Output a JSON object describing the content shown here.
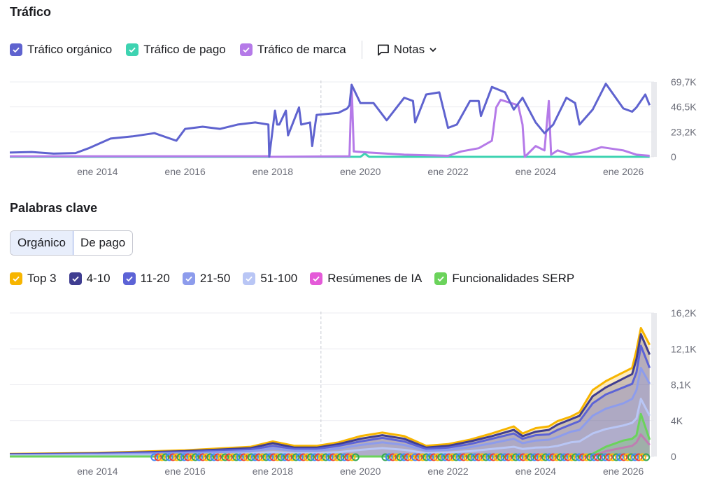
{
  "traffic": {
    "title": "Tráfico",
    "legend": [
      {
        "label": "Tráfico orgánico",
        "color": "#5f63cf"
      },
      {
        "label": "Tráfico de pago",
        "color": "#3ed3b1"
      },
      {
        "label": "Tráfico de marca",
        "color": "#b57ae8"
      }
    ],
    "notes_label": "Notas"
  },
  "keywords": {
    "title": "Palabras clave",
    "tabs": [
      {
        "label": "Orgánico",
        "active": true
      },
      {
        "label": "De pago",
        "active": false
      }
    ],
    "legend": [
      {
        "label": "Top 3",
        "color": "#f7b500"
      },
      {
        "label": "4-10",
        "color": "#3f3d91"
      },
      {
        "label": "11-20",
        "color": "#5c63d6"
      },
      {
        "label": "21-50",
        "color": "#8d9cec"
      },
      {
        "label": "51-100",
        "color": "#b9c6f5"
      },
      {
        "label": "Resúmenes de IA",
        "color": "#e45ad8"
      },
      {
        "label": "Funcionalidades SERP",
        "color": "#6bd35b"
      }
    ]
  },
  "chart_data": [
    {
      "type": "line",
      "title": "Tráfico",
      "x_ticks": [
        "ene 2014",
        "ene 2016",
        "ene 2018",
        "ene 2020",
        "ene 2022",
        "ene 2024",
        "ene 2026"
      ],
      "y_ticks": [
        "69,7K",
        "46,5K",
        "23,2K",
        "0"
      ],
      "ylim": [
        0,
        69700
      ],
      "xlim": [
        2012.0,
        2026.7
      ],
      "grid": true,
      "series": [
        {
          "name": "Tráfico orgánico",
          "color": "#5f63cf",
          "x": [
            2012.0,
            2012.5,
            2013.0,
            2013.5,
            2013.8,
            2014.3,
            2014.8,
            2015.3,
            2015.8,
            2016.0,
            2016.4,
            2016.8,
            2017.2,
            2017.6,
            2017.9,
            2017.92,
            2018.05,
            2018.1,
            2018.15,
            2018.3,
            2018.35,
            2018.6,
            2018.65,
            2018.85,
            2018.9,
            2019.0,
            2019.5,
            2019.7,
            2019.75,
            2019.8,
            2020.0,
            2020.3,
            2020.6,
            2021.0,
            2021.2,
            2021.25,
            2021.5,
            2021.8,
            2022.0,
            2022.2,
            2022.5,
            2022.7,
            2022.75,
            2023.0,
            2023.3,
            2023.5,
            2023.7,
            2024.0,
            2024.2,
            2024.4,
            2024.7,
            2024.9,
            2025.0,
            2025.3,
            2025.6,
            2026.0,
            2026.2,
            2026.3,
            2026.5,
            2026.6
          ],
          "y": [
            4000,
            4500,
            3000,
            3500,
            8000,
            17000,
            19000,
            22000,
            15000,
            26000,
            28000,
            26000,
            30000,
            32000,
            30000,
            0,
            43000,
            30000,
            30000,
            43000,
            20000,
            46000,
            30000,
            32000,
            10000,
            39000,
            41000,
            45000,
            48000,
            67000,
            50000,
            50000,
            34000,
            55000,
            52000,
            32000,
            58000,
            60000,
            27000,
            30000,
            52000,
            52000,
            38000,
            65000,
            60000,
            44000,
            55000,
            32000,
            22000,
            30000,
            55000,
            50000,
            30000,
            44000,
            68000,
            45000,
            42000,
            46000,
            58000,
            48000
          ]
        },
        {
          "name": "Tráfico de marca",
          "color": "#b57ae8",
          "x": [
            2012.0,
            2017.9,
            2017.92,
            2019.75,
            2019.8,
            2019.85,
            2020.2,
            2021.0,
            2022.0,
            2022.3,
            2022.7,
            2023.0,
            2023.1,
            2023.2,
            2023.6,
            2023.7,
            2023.75,
            2024.0,
            2024.2,
            2024.3,
            2024.35,
            2024.5,
            2024.8,
            2025.2,
            2025.5,
            2026.0,
            2026.3,
            2026.6
          ],
          "y": [
            500,
            500,
            0,
            500,
            67000,
            5000,
            4000,
            2000,
            1000,
            5000,
            8000,
            15000,
            46000,
            53000,
            48000,
            30000,
            0,
            10000,
            6000,
            52000,
            2000,
            6000,
            2000,
            5000,
            9000,
            6000,
            2000,
            1000
          ]
        },
        {
          "name": "Tráfico de pago",
          "color": "#3ed3b1",
          "x": [
            2012.0,
            2020.0,
            2020.1,
            2020.2,
            2026.6
          ],
          "y": [
            0,
            0,
            3000,
            0,
            0
          ]
        }
      ]
    },
    {
      "type": "area",
      "title": "Palabras clave",
      "x_ticks": [
        "ene 2014",
        "ene 2016",
        "ene 2018",
        "ene 2020",
        "ene 2022",
        "ene 2024",
        "ene 2026"
      ],
      "y_ticks": [
        "16,2K",
        "12,1K",
        "8,1K",
        "4K",
        "0"
      ],
      "ylim": [
        0,
        16200
      ],
      "xlim": [
        2012.0,
        2026.7
      ],
      "grid": true,
      "x": [
        2012.0,
        2014.0,
        2016.0,
        2017.5,
        2018.0,
        2018.5,
        2019.0,
        2019.5,
        2020.0,
        2020.5,
        2021.0,
        2021.5,
        2022.0,
        2022.5,
        2023.0,
        2023.5,
        2023.7,
        2024.0,
        2024.3,
        2024.5,
        2024.8,
        2025.0,
        2025.3,
        2025.6,
        2026.0,
        2026.2,
        2026.3,
        2026.4,
        2026.6
      ],
      "series": [
        {
          "name": "Top 3",
          "color": "#f7b500",
          "values": [
            300,
            400,
            700,
            1100,
            1700,
            1200,
            1200,
            1600,
            2300,
            2700,
            2300,
            1200,
            1400,
            1900,
            2600,
            3400,
            2600,
            3200,
            3400,
            4000,
            4500,
            5000,
            7500,
            8500,
            9500,
            10000,
            12000,
            14500,
            12600
          ]
        },
        {
          "name": "4-10",
          "color": "#3f3d91",
          "values": [
            250,
            350,
            600,
            950,
            1500,
            1000,
            1000,
            1400,
            2000,
            2400,
            2000,
            1000,
            1200,
            1700,
            2300,
            3000,
            2300,
            2800,
            3000,
            3600,
            4200,
            4600,
            6800,
            7800,
            8800,
            9300,
            11000,
            13800,
            11500
          ]
        },
        {
          "name": "11-20",
          "color": "#5c63d6",
          "values": [
            200,
            300,
            500,
            800,
            1200,
            850,
            850,
            1200,
            1700,
            2100,
            1700,
            850,
            1000,
            1400,
            2000,
            2600,
            2000,
            2400,
            2500,
            3000,
            3600,
            4000,
            6000,
            7000,
            7800,
            8200,
            9500,
            12500,
            10000
          ]
        },
        {
          "name": "21-50",
          "color": "#8d9cec",
          "values": [
            150,
            220,
            380,
            600,
            900,
            650,
            650,
            900,
            1300,
            1600,
            1300,
            650,
            750,
            1050,
            1500,
            2000,
            1500,
            1800,
            1900,
            2200,
            2800,
            3000,
            4600,
            5400,
            6000,
            6500,
            7500,
            10000,
            8200
          ]
        },
        {
          "name": "51-100",
          "color": "#b9c6f5",
          "values": [
            80,
            120,
            200,
            350,
            500,
            380,
            380,
            500,
            750,
            950,
            750,
            380,
            450,
            600,
            850,
            1100,
            850,
            1000,
            1050,
            1200,
            1600,
            1700,
            2600,
            3100,
            3500,
            3800,
            4300,
            6500,
            4600
          ]
        },
        {
          "name": "Resúmenes de IA",
          "color": "#e45ad8",
          "values": [
            0,
            0,
            0,
            0,
            0,
            0,
            0,
            0,
            0,
            0,
            0,
            0,
            0,
            0,
            0,
            0,
            0,
            0,
            0,
            0,
            0,
            0,
            0,
            600,
            1000,
            1200,
            1600,
            2500,
            1300
          ]
        },
        {
          "name": "Funcionalidades SERP",
          "color": "#6bd35b",
          "values": [
            0,
            0,
            0,
            0,
            0,
            0,
            0,
            0,
            0,
            0,
            0,
            0,
            0,
            0,
            0,
            0,
            0,
            0,
            0,
            0,
            0,
            0,
            300,
            1100,
            1800,
            2000,
            2400,
            4800,
            1900
          ]
        }
      ]
    }
  ]
}
